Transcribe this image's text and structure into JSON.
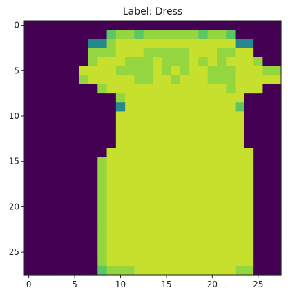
{
  "title": "Label: Dress",
  "image": {
    "rows": 28,
    "cols": 28,
    "colormap": "viridis",
    "vmin": 0,
    "vmax": 255,
    "pixel_rows": [
      "0000000000000000000000000000",
      "0000000005665666666566500000",
      "0000000336777777777777733000",
      "0000000666777666667776677000",
      "0000000677766676667676777600",
      "0000007777666676767766677766",
      "0000006777776677677766677777",
      "0000000067777777777777677700",
      "0000000000677777777777770000",
      "0000000000377777777777750000",
      "0000000000777777777777770000",
      "0000000000777777777777770000",
      "0000000000777777777777770000",
      "0000000000777777777777770000",
      "0000000007777777777777777000",
      "0000000067777777777777777000",
      "0000000067777777777777777000",
      "0000000067777777777777777000",
      "0000000067777777777777777000",
      "0000000067777777777777777000",
      "0000000067777777777777777000",
      "0000000067777777777777777000",
      "0000000067777777777777777000",
      "0000000067777777777777777000",
      "0000000067777777777777777000",
      "0000000067777777777777777000",
      "0000000067777777777777777000",
      "0000000056667777777777766000"
    ],
    "level_values": [
      0,
      40,
      80,
      120,
      160,
      190,
      215,
      235,
      255
    ]
  },
  "x_axis": {
    "range": [
      -0.5,
      27.5
    ],
    "ticks": [
      0,
      5,
      10,
      15,
      20,
      25
    ],
    "tick_labels": [
      "0",
      "5",
      "10",
      "15",
      "20",
      "25"
    ]
  },
  "y_axis": {
    "range": [
      27.5,
      -0.5
    ],
    "ticks": [
      0,
      5,
      10,
      15,
      20,
      25
    ],
    "tick_labels": [
      "0",
      "5",
      "10",
      "15",
      "20",
      "25"
    ]
  },
  "colors": {
    "background": "#ffffff",
    "axis": "#222222"
  }
}
